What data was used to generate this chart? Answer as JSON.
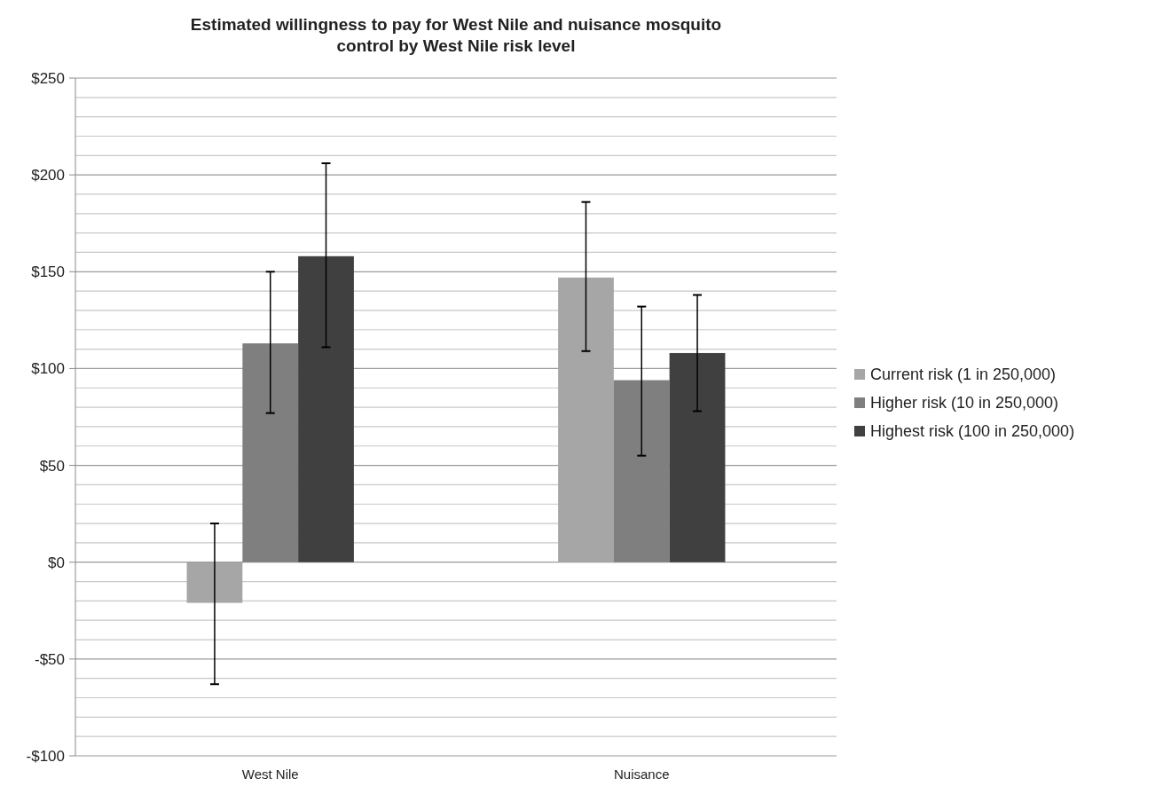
{
  "chart_data": {
    "type": "bar",
    "title": "Estimated willingness to pay for West Nile and nuisance mosquito control by West Nile risk level",
    "categories": [
      "West Nile",
      "Nuisance"
    ],
    "series": [
      {
        "name": "Current risk (1 in 250,000)",
        "color": "#a6a6a6",
        "values": [
          -21,
          147
        ],
        "errors": [
          [
            -63,
            20
          ],
          [
            109,
            186
          ]
        ]
      },
      {
        "name": "Higher risk (10 in 250,000)",
        "color": "#7f7f7f",
        "values": [
          113,
          94
        ],
        "errors": [
          [
            77,
            150
          ],
          [
            55,
            132
          ]
        ]
      },
      {
        "name": "Highest risk (100 in 250,000)",
        "color": "#404040",
        "values": [
          158,
          108
        ],
        "errors": [
          [
            111,
            206
          ],
          [
            78,
            138
          ]
        ]
      }
    ],
    "ylim": [
      -100,
      250
    ],
    "yticks": [
      {
        "value": -100,
        "label": "-$100"
      },
      {
        "value": -90,
        "label": null
      },
      {
        "value": -80,
        "label": null
      },
      {
        "value": -70,
        "label": null
      },
      {
        "value": -60,
        "label": null
      },
      {
        "value": -50,
        "label": "-$50"
      },
      {
        "value": -40,
        "label": null
      },
      {
        "value": -30,
        "label": null
      },
      {
        "value": -20,
        "label": null
      },
      {
        "value": -10,
        "label": null
      },
      {
        "value": 0,
        "label": "$0"
      },
      {
        "value": 10,
        "label": null
      },
      {
        "value": 20,
        "label": null
      },
      {
        "value": 30,
        "label": null
      },
      {
        "value": 40,
        "label": null
      },
      {
        "value": 50,
        "label": "$50"
      },
      {
        "value": 60,
        "label": null
      },
      {
        "value": 70,
        "label": null
      },
      {
        "value": 80,
        "label": null
      },
      {
        "value": 90,
        "label": null
      },
      {
        "value": 100,
        "label": "$100"
      },
      {
        "value": 110,
        "label": null
      },
      {
        "value": 120,
        "label": null
      },
      {
        "value": 130,
        "label": null
      },
      {
        "value": 140,
        "label": null
      },
      {
        "value": 150,
        "label": "$150"
      },
      {
        "value": 160,
        "label": null
      },
      {
        "value": 170,
        "label": null
      },
      {
        "value": 180,
        "label": null
      },
      {
        "value": 190,
        "label": null
      },
      {
        "value": 200,
        "label": "$200"
      },
      {
        "value": 210,
        "label": null
      },
      {
        "value": 220,
        "label": null
      },
      {
        "value": 230,
        "label": null
      },
      {
        "value": 240,
        "label": null
      },
      {
        "value": 250,
        "label": "$250"
      }
    ],
    "grid": true,
    "legend": "right"
  }
}
